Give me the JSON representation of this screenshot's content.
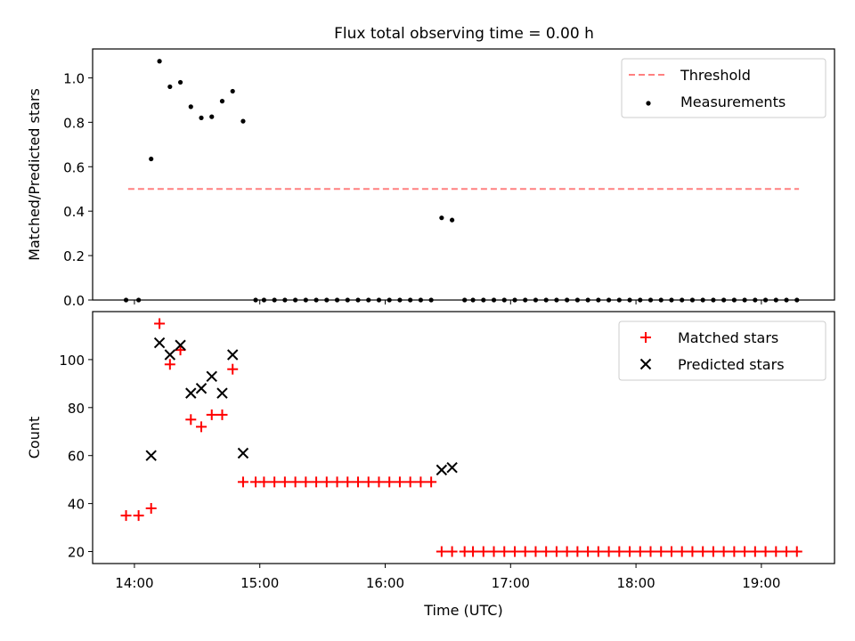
{
  "title": "Flux total observing time = 0.00 h",
  "chart_data": [
    {
      "type": "scatter",
      "panel": "top",
      "title": "Flux total observing time = 0.00 h",
      "ylabel": "Matched/Predicted stars",
      "xlabel": "",
      "xlim": [
        "13:40",
        "19:35"
      ],
      "ylim": [
        0,
        1.13
      ],
      "yticks": [
        0.0,
        0.2,
        0.4,
        0.6,
        0.8,
        1.0
      ],
      "ytick_labels": [
        "0.0",
        "0.2",
        "0.4",
        "0.6",
        "0.8",
        "1.0"
      ],
      "grid": false,
      "legend": "top-right",
      "series": [
        {
          "name": "Threshold",
          "kind": "dashed-line",
          "color": "#ff8080",
          "x": [
            "13:57",
            "19:18"
          ],
          "y": [
            0.5,
            0.5
          ]
        },
        {
          "name": "Measurements",
          "kind": "points",
          "color": "#000000",
          "points": [
            [
              "13:56",
              0
            ],
            [
              "14:02",
              0
            ],
            [
              "14:08",
              0.635
            ],
            [
              "14:12",
              1.075
            ],
            [
              "14:17",
              0.96
            ],
            [
              "14:22",
              0.98
            ],
            [
              "14:27",
              0.87
            ],
            [
              "14:32",
              0.82
            ],
            [
              "14:37",
              0.825
            ],
            [
              "14:42",
              0.895
            ],
            [
              "14:47",
              0.94
            ],
            [
              "14:52",
              0.805
            ],
            [
              "14:58",
              0
            ],
            [
              "15:02",
              0
            ],
            [
              "15:07",
              0
            ],
            [
              "15:12",
              0
            ],
            [
              "15:17",
              0
            ],
            [
              "15:22",
              0
            ],
            [
              "15:27",
              0
            ],
            [
              "15:32",
              0
            ],
            [
              "15:37",
              0
            ],
            [
              "15:42",
              0
            ],
            [
              "15:47",
              0
            ],
            [
              "15:52",
              0
            ],
            [
              "15:57",
              0
            ],
            [
              "16:02",
              0
            ],
            [
              "16:07",
              0
            ],
            [
              "16:12",
              0
            ],
            [
              "16:17",
              0
            ],
            [
              "16:22",
              0
            ],
            [
              "16:27",
              0.37
            ],
            [
              "16:32",
              0.36
            ],
            [
              "16:38",
              0
            ],
            [
              "16:42",
              0
            ],
            [
              "16:47",
              0
            ],
            [
              "16:52",
              0
            ],
            [
              "16:57",
              0
            ],
            [
              "17:02",
              0
            ],
            [
              "17:07",
              0
            ],
            [
              "17:12",
              0
            ],
            [
              "17:17",
              0
            ],
            [
              "17:22",
              0
            ],
            [
              "17:27",
              0
            ],
            [
              "17:32",
              0
            ],
            [
              "17:37",
              0
            ],
            [
              "17:42",
              0
            ],
            [
              "17:47",
              0
            ],
            [
              "17:52",
              0
            ],
            [
              "17:57",
              0
            ],
            [
              "18:02",
              0
            ],
            [
              "18:07",
              0
            ],
            [
              "18:12",
              0
            ],
            [
              "18:17",
              0
            ],
            [
              "18:22",
              0
            ],
            [
              "18:27",
              0
            ],
            [
              "18:32",
              0
            ],
            [
              "18:37",
              0
            ],
            [
              "18:42",
              0
            ],
            [
              "18:47",
              0
            ],
            [
              "18:52",
              0
            ],
            [
              "18:57",
              0
            ],
            [
              "19:02",
              0
            ],
            [
              "19:07",
              0
            ],
            [
              "19:12",
              0
            ],
            [
              "19:17",
              0
            ]
          ]
        }
      ]
    },
    {
      "type": "scatter",
      "panel": "bottom",
      "title": "",
      "ylabel": "Count",
      "xlabel": "Time (UTC)",
      "xlim": [
        "13:40",
        "19:35"
      ],
      "ylim": [
        15,
        120
      ],
      "yticks": [
        20,
        40,
        60,
        80,
        100
      ],
      "ytick_labels": [
        "20",
        "40",
        "60",
        "80",
        "100"
      ],
      "xticks": [
        "14:00",
        "15:00",
        "16:00",
        "17:00",
        "18:00",
        "19:00"
      ],
      "xtick_labels": [
        "14:00",
        "15:00",
        "16:00",
        "17:00",
        "18:00",
        "19:00"
      ],
      "grid": false,
      "legend": "top-right",
      "series": [
        {
          "name": "Matched stars",
          "kind": "plus",
          "color": "#ff0000",
          "points": [
            [
              "13:56",
              35
            ],
            [
              "14:02",
              35
            ],
            [
              "14:08",
              38
            ],
            [
              "14:12",
              115
            ],
            [
              "14:17",
              98
            ],
            [
              "14:22",
              104
            ],
            [
              "14:27",
              75
            ],
            [
              "14:32",
              72
            ],
            [
              "14:37",
              77
            ],
            [
              "14:42",
              77
            ],
            [
              "14:47",
              96
            ],
            [
              "14:52",
              49
            ],
            [
              "14:58",
              49
            ],
            [
              "15:02",
              49
            ],
            [
              "15:07",
              49
            ],
            [
              "15:12",
              49
            ],
            [
              "15:17",
              49
            ],
            [
              "15:22",
              49
            ],
            [
              "15:27",
              49
            ],
            [
              "15:32",
              49
            ],
            [
              "15:37",
              49
            ],
            [
              "15:42",
              49
            ],
            [
              "15:47",
              49
            ],
            [
              "15:52",
              49
            ],
            [
              "15:57",
              49
            ],
            [
              "16:02",
              49
            ],
            [
              "16:07",
              49
            ],
            [
              "16:12",
              49
            ],
            [
              "16:17",
              49
            ],
            [
              "16:22",
              49
            ],
            [
              "16:27",
              20
            ],
            [
              "16:32",
              20
            ],
            [
              "16:38",
              20
            ],
            [
              "16:42",
              20
            ],
            [
              "16:47",
              20
            ],
            [
              "16:52",
              20
            ],
            [
              "16:57",
              20
            ],
            [
              "17:02",
              20
            ],
            [
              "17:07",
              20
            ],
            [
              "17:12",
              20
            ],
            [
              "17:17",
              20
            ],
            [
              "17:22",
              20
            ],
            [
              "17:27",
              20
            ],
            [
              "17:32",
              20
            ],
            [
              "17:37",
              20
            ],
            [
              "17:42",
              20
            ],
            [
              "17:47",
              20
            ],
            [
              "17:52",
              20
            ],
            [
              "17:57",
              20
            ],
            [
              "18:02",
              20
            ],
            [
              "18:07",
              20
            ],
            [
              "18:12",
              20
            ],
            [
              "18:17",
              20
            ],
            [
              "18:22",
              20
            ],
            [
              "18:27",
              20
            ],
            [
              "18:32",
              20
            ],
            [
              "18:37",
              20
            ],
            [
              "18:42",
              20
            ],
            [
              "18:47",
              20
            ],
            [
              "18:52",
              20
            ],
            [
              "18:57",
              20
            ],
            [
              "19:02",
              20
            ],
            [
              "19:07",
              20
            ],
            [
              "19:12",
              20
            ],
            [
              "19:17",
              20
            ]
          ]
        },
        {
          "name": "Predicted stars",
          "kind": "x",
          "color": "#000000",
          "points": [
            [
              "14:08",
              60
            ],
            [
              "14:12",
              107
            ],
            [
              "14:17",
              102
            ],
            [
              "14:22",
              106
            ],
            [
              "14:27",
              86
            ],
            [
              "14:32",
              88
            ],
            [
              "14:37",
              93
            ],
            [
              "14:42",
              86
            ],
            [
              "14:47",
              102
            ],
            [
              "14:52",
              61
            ],
            [
              "16:27",
              54
            ],
            [
              "16:32",
              55
            ]
          ]
        }
      ]
    }
  ]
}
